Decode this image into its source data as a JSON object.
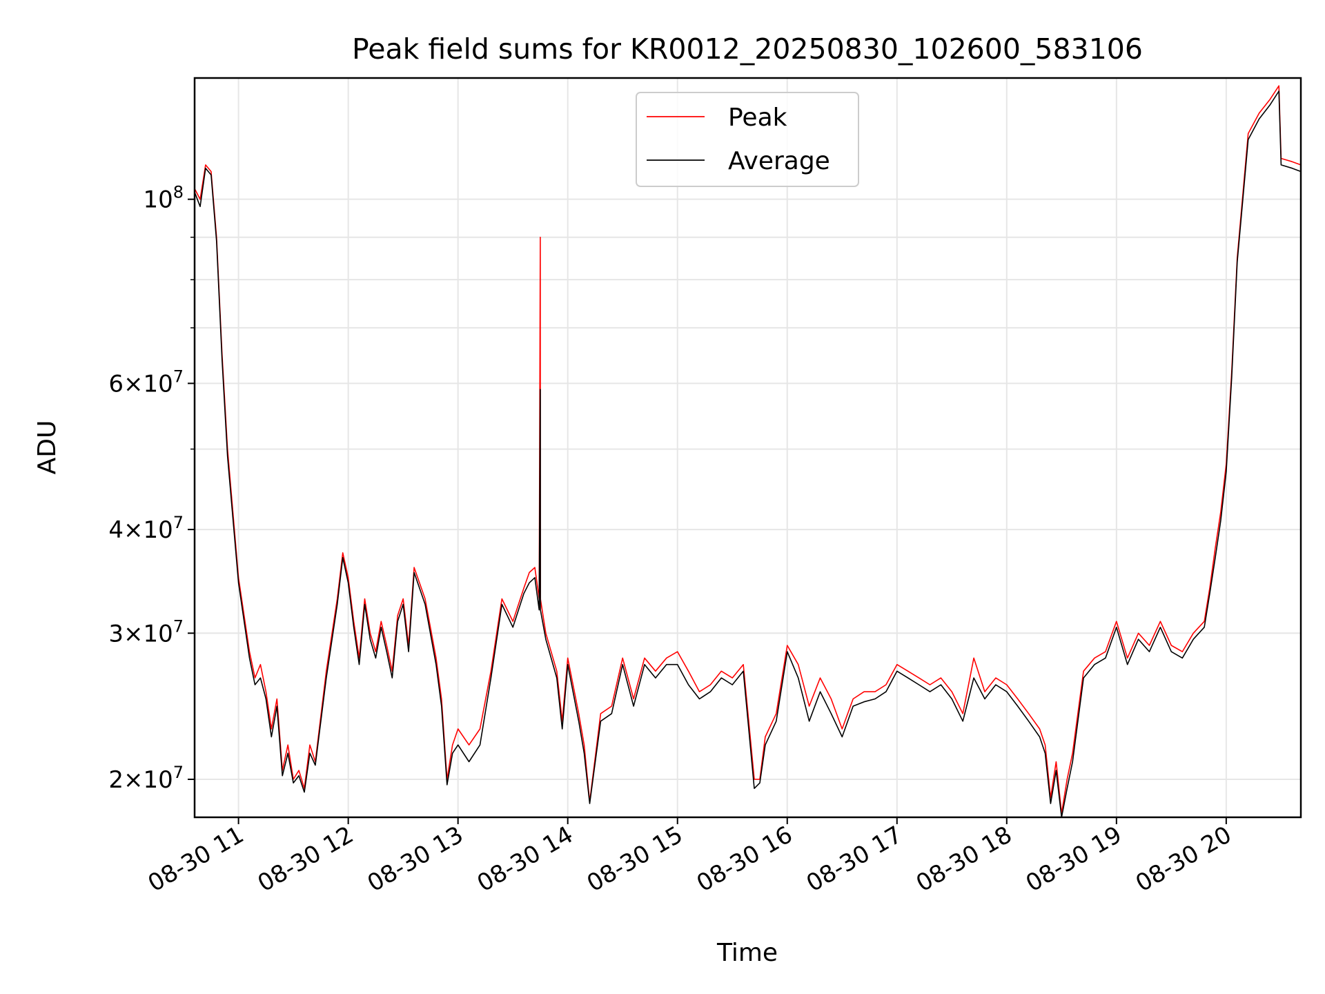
{
  "chart_data": {
    "type": "line",
    "title": "Peak field sums for KR0012_20250830_102600_583106",
    "xlabel": "Time",
    "ylabel": "ADU",
    "x_unit": "hour of day on 2025-08-30",
    "xlim": [
      10.6,
      20.68
    ],
    "ylim": [
      18000000,
      140000000
    ],
    "yscale": "log",
    "grid": true,
    "legend": {
      "placement": "top-center",
      "entries": [
        "Peak",
        "Average"
      ]
    },
    "x_tick_labels": [
      "08-30 11",
      "08-30 12",
      "08-30 13",
      "08-30 14",
      "08-30 15",
      "08-30 16",
      "08-30 17",
      "08-30 18",
      "08-30 19",
      "08-30 20"
    ],
    "x_ticks": [
      11,
      12,
      13,
      14,
      15,
      16,
      17,
      18,
      19,
      20
    ],
    "y_tick_labels": [
      {
        "value": 20000000,
        "mantissa": "2",
        "exponent": "7"
      },
      {
        "value": 30000000,
        "mantissa": "3",
        "exponent": "7"
      },
      {
        "value": 40000000,
        "mantissa": "4",
        "exponent": "7"
      },
      {
        "value": 60000000,
        "mantissa": "6",
        "exponent": "7"
      },
      {
        "value": 100000000,
        "mantissa": "",
        "exponent": "8"
      }
    ],
    "y_minor_ticks": [
      50000000,
      70000000,
      80000000,
      90000000
    ],
    "series": [
      {
        "name": "Peak",
        "color": "#ff0000",
        "x": [
          10.6,
          10.65,
          10.7,
          10.75,
          10.8,
          10.85,
          10.9,
          11.0,
          11.1,
          11.15,
          11.2,
          11.25,
          11.3,
          11.35,
          11.4,
          11.45,
          11.5,
          11.55,
          11.6,
          11.65,
          11.7,
          11.8,
          11.9,
          11.95,
          12.0,
          12.05,
          12.1,
          12.15,
          12.2,
          12.25,
          12.3,
          12.35,
          12.4,
          12.45,
          12.5,
          12.55,
          12.6,
          12.7,
          12.8,
          12.85,
          12.9,
          12.95,
          13.0,
          13.1,
          13.2,
          13.3,
          13.4,
          13.5,
          13.6,
          13.65,
          13.7,
          13.74,
          13.75,
          13.751,
          13.8,
          13.9,
          13.95,
          14.0,
          14.1,
          14.15,
          14.2,
          14.3,
          14.4,
          14.5,
          14.6,
          14.7,
          14.8,
          14.9,
          15.0,
          15.1,
          15.2,
          15.3,
          15.4,
          15.5,
          15.6,
          15.7,
          15.75,
          15.8,
          15.9,
          16.0,
          16.1,
          16.2,
          16.3,
          16.4,
          16.5,
          16.6,
          16.7,
          16.8,
          16.9,
          17.0,
          17.1,
          17.2,
          17.3,
          17.4,
          17.5,
          17.6,
          17.7,
          17.8,
          17.9,
          18.0,
          18.1,
          18.2,
          18.3,
          18.35,
          18.4,
          18.45,
          18.5,
          18.55,
          18.6,
          18.7,
          18.8,
          18.9,
          19.0,
          19.1,
          19.2,
          19.3,
          19.4,
          19.5,
          19.6,
          19.7,
          19.8,
          19.85,
          19.9,
          19.95,
          20.0,
          20.05,
          20.1,
          20.2,
          20.3,
          20.4,
          20.48,
          20.5,
          20.6,
          20.68
        ],
        "y": [
          103000000,
          100000000,
          110000000,
          108000000,
          90000000,
          65000000,
          50000000,
          35000000,
          28500000,
          26500000,
          27500000,
          25500000,
          23000000,
          25000000,
          20500000,
          22000000,
          20000000,
          20500000,
          19500000,
          22000000,
          21000000,
          27000000,
          33000000,
          37500000,
          35000000,
          31000000,
          28000000,
          33000000,
          30000000,
          28500000,
          31000000,
          29000000,
          27000000,
          31500000,
          33000000,
          29000000,
          36000000,
          33000000,
          28000000,
          25000000,
          20000000,
          22000000,
          23000000,
          22000000,
          23000000,
          27000000,
          33000000,
          31000000,
          34000000,
          35500000,
          36000000,
          33000000,
          90000000,
          33000000,
          30000000,
          27000000,
          23500000,
          28000000,
          24000000,
          22000000,
          18800000,
          24000000,
          24500000,
          28000000,
          25000000,
          28000000,
          27000000,
          28000000,
          28500000,
          27000000,
          25500000,
          26000000,
          27000000,
          26500000,
          27500000,
          20000000,
          20000000,
          22500000,
          24000000,
          29000000,
          27500000,
          24500000,
          26500000,
          25000000,
          23000000,
          25000000,
          25500000,
          25500000,
          26000000,
          27500000,
          27000000,
          26500000,
          26000000,
          26500000,
          25500000,
          24000000,
          28000000,
          25500000,
          26500000,
          26000000,
          25000000,
          24000000,
          23000000,
          22000000,
          19000000,
          21000000,
          18200000,
          20000000,
          21500000,
          27000000,
          28000000,
          28500000,
          31000000,
          28000000,
          30000000,
          29000000,
          31000000,
          29000000,
          28500000,
          30000000,
          31000000,
          34000000,
          38000000,
          42000000,
          48000000,
          62000000,
          85000000,
          120000000,
          127000000,
          132000000,
          137000000,
          112000000,
          111000000,
          110000000
        ]
      },
      {
        "name": "Average",
        "color": "#000000",
        "x": [
          10.6,
          10.65,
          10.7,
          10.75,
          10.8,
          10.85,
          10.9,
          11.0,
          11.1,
          11.15,
          11.2,
          11.25,
          11.3,
          11.35,
          11.4,
          11.45,
          11.5,
          11.55,
          11.6,
          11.65,
          11.7,
          11.8,
          11.9,
          11.95,
          12.0,
          12.05,
          12.1,
          12.15,
          12.2,
          12.25,
          12.3,
          12.35,
          12.4,
          12.45,
          12.5,
          12.55,
          12.6,
          12.7,
          12.8,
          12.85,
          12.9,
          12.95,
          13.0,
          13.1,
          13.2,
          13.3,
          13.4,
          13.5,
          13.6,
          13.65,
          13.7,
          13.74,
          13.75,
          13.751,
          13.8,
          13.9,
          13.95,
          14.0,
          14.1,
          14.15,
          14.2,
          14.3,
          14.4,
          14.5,
          14.6,
          14.7,
          14.8,
          14.9,
          15.0,
          15.1,
          15.2,
          15.3,
          15.4,
          15.5,
          15.6,
          15.7,
          15.75,
          15.8,
          15.9,
          16.0,
          16.1,
          16.2,
          16.3,
          16.4,
          16.5,
          16.6,
          16.7,
          16.8,
          16.9,
          17.0,
          17.1,
          17.2,
          17.3,
          17.4,
          17.5,
          17.6,
          17.7,
          17.8,
          17.9,
          18.0,
          18.1,
          18.2,
          18.3,
          18.35,
          18.4,
          18.45,
          18.5,
          18.55,
          18.6,
          18.7,
          18.8,
          18.9,
          19.0,
          19.1,
          19.2,
          19.3,
          19.4,
          19.5,
          19.6,
          19.7,
          19.8,
          19.85,
          19.9,
          19.95,
          20.0,
          20.05,
          20.1,
          20.2,
          20.3,
          20.4,
          20.48,
          20.5,
          20.6,
          20.68
        ],
        "y": [
          102000000,
          98000000,
          109000000,
          107000000,
          89000000,
          64000000,
          49000000,
          34500000,
          28000000,
          26000000,
          26500000,
          25000000,
          22500000,
          24500000,
          20200000,
          21500000,
          19800000,
          20200000,
          19300000,
          21500000,
          20800000,
          26500000,
          32500000,
          37000000,
          34500000,
          30500000,
          27500000,
          32500000,
          29500000,
          28000000,
          30500000,
          28500000,
          26500000,
          31000000,
          32500000,
          28500000,
          35500000,
          32500000,
          27500000,
          24500000,
          19700000,
          21500000,
          22000000,
          21000000,
          22000000,
          26500000,
          32500000,
          30500000,
          33500000,
          34500000,
          35000000,
          32000000,
          59000000,
          32000000,
          29500000,
          26500000,
          23000000,
          27500000,
          23500000,
          21500000,
          18700000,
          23500000,
          24000000,
          27500000,
          24500000,
          27500000,
          26500000,
          27500000,
          27500000,
          26000000,
          25000000,
          25500000,
          26500000,
          26000000,
          27000000,
          19500000,
          19800000,
          22000000,
          23500000,
          28500000,
          26500000,
          23500000,
          25500000,
          24000000,
          22500000,
          24500000,
          24800000,
          25000000,
          25500000,
          27000000,
          26500000,
          26000000,
          25500000,
          26000000,
          25000000,
          23500000,
          26500000,
          25000000,
          26000000,
          25500000,
          24500000,
          23500000,
          22500000,
          21500000,
          18700000,
          20500000,
          18000000,
          19500000,
          21000000,
          26500000,
          27500000,
          28000000,
          30500000,
          27500000,
          29500000,
          28500000,
          30500000,
          28500000,
          28000000,
          29500000,
          30500000,
          33500000,
          37000000,
          41000000,
          47000000,
          61000000,
          84000000,
          118000000,
          125000000,
          130000000,
          135000000,
          110000000,
          109000000,
          108000000
        ]
      }
    ]
  }
}
